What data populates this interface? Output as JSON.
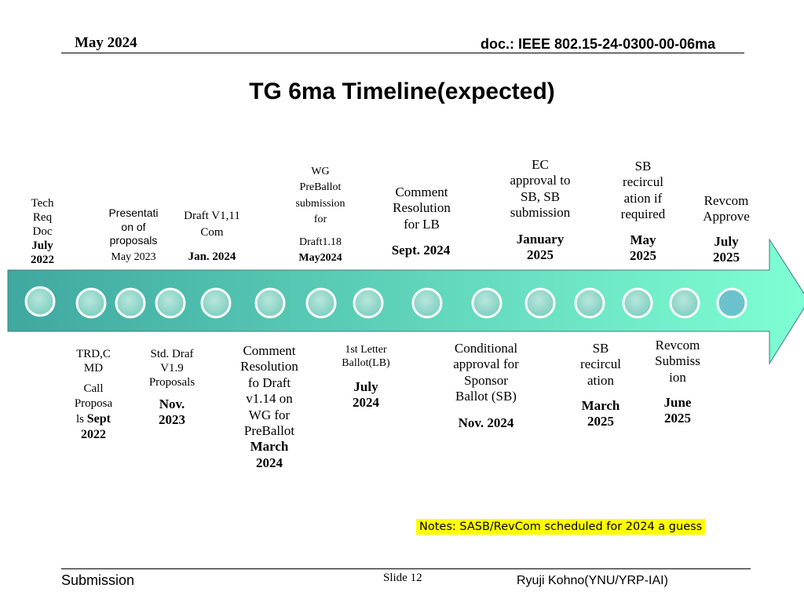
{
  "header": {
    "date": "May 2024",
    "doc_id": "doc.: IEEE 802.15-24-0300-00-06ma"
  },
  "title": "TG 6ma Timeline(expected)",
  "top_events": {
    "tech_req": [
      "Tech",
      "Req",
      "Doc"
    ],
    "tech_req_date": [
      "July",
      "2022"
    ],
    "presentation": [
      "Presentati",
      "on of",
      "proposals"
    ],
    "presentation_date": "May 2023",
    "draft_v111": [
      "Draft V1,11",
      "Com"
    ],
    "draft_v111_date": "Jan. 2024",
    "wg_preballot": [
      "WG",
      "PreBallot",
      "submission",
      "for"
    ],
    "wg_preballot_draft": "Draft1.18",
    "wg_preballot_date": "May2024",
    "comment_lb": [
      "Comment",
      "Resolution",
      "for LB"
    ],
    "comment_lb_date": "Sept. 2024",
    "ec_approval": [
      "EC",
      "approval to",
      "SB, SB",
      "submission"
    ],
    "ec_approval_date": [
      "January",
      "2025"
    ],
    "sb_recircul_if": [
      "SB",
      "recircul",
      "ation if",
      "required"
    ],
    "sb_recircul_if_date": [
      "May",
      "2025"
    ],
    "revcom_approve": [
      "Revcom",
      "Approve"
    ],
    "revcom_approve_date": [
      "July",
      "2025"
    ]
  },
  "bottom_events": {
    "trd": [
      "TRD,C",
      "MD"
    ],
    "trd_call": [
      "Call",
      "Proposa"
    ],
    "trd_ls": "ls ",
    "trd_date_1": "Sept",
    "trd_date_2": "2022",
    "std_draf": [
      "Std. Draf",
      "V1.9",
      "Proposals"
    ],
    "std_draf_date": [
      "Nov.",
      "2023"
    ],
    "comment_draft": [
      "Comment",
      "Resolution",
      "fo Draft",
      "v1.14 on",
      "WG for",
      "PreBallot"
    ],
    "comment_draft_date": [
      "March",
      "2024"
    ],
    "letter_ballot": [
      "1st Letter",
      "Ballot(LB)"
    ],
    "letter_ballot_date": [
      "July",
      "2024"
    ],
    "conditional": [
      "Conditional",
      "approval for",
      "Sponsor",
      "Ballot (SB)"
    ],
    "conditional_date": "Nov. 2024",
    "sb_recircul": [
      "SB",
      "recircul",
      "ation"
    ],
    "sb_recircul_date": [
      "March",
      "2025"
    ],
    "revcom_sub": [
      "Revcom",
      "Submiss",
      "ion"
    ],
    "revcom_sub_date": [
      "June",
      "2025"
    ]
  },
  "timeline": {
    "arrow_start_color": "#3FA8A0",
    "arrow_end_color": "#7FFFD4",
    "dot_count": 16
  },
  "notes": "Notes:  SASB/RevCom scheduled for 2024 a guess",
  "footer": {
    "left": "Submission",
    "center": "Slide 12",
    "right": "Ryuji Kohno(YNU/YRP-IAI)"
  }
}
